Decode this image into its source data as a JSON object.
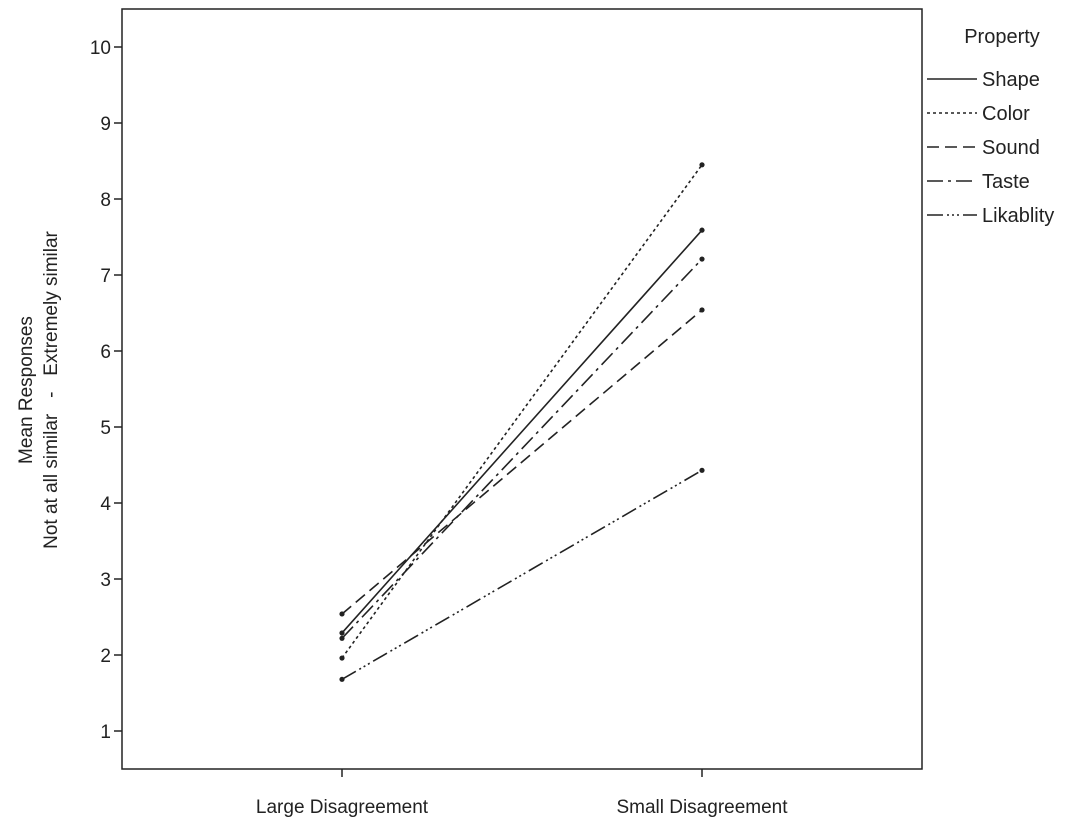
{
  "chart_data": {
    "type": "line",
    "categories": [
      "Large Disagreement",
      "Small Disagreement"
    ],
    "ylabel_line1": "Mean Responses",
    "ylabel_line2": "Not at all similar   -   Extremely similar",
    "xlabel": "",
    "ylim": [
      0.5,
      10.5
    ],
    "yticks": [
      1,
      2,
      3,
      4,
      5,
      6,
      7,
      8,
      9,
      10
    ],
    "grid": false,
    "legend": {
      "title": "Property",
      "placement": "right"
    },
    "series": [
      {
        "name": "Shape",
        "values": [
          2.29,
          7.59
        ],
        "dash": "solid"
      },
      {
        "name": "Color",
        "values": [
          1.96,
          8.45
        ],
        "dash": "dotted"
      },
      {
        "name": "Sound",
        "values": [
          2.54,
          6.54
        ],
        "dash": "dashed"
      },
      {
        "name": "Taste",
        "values": [
          2.22,
          7.21
        ],
        "dash": "dashdot"
      },
      {
        "name": "Likablity",
        "values": [
          1.68,
          4.43
        ],
        "dash": "dashdotdotdot"
      }
    ],
    "line_color": "#222222"
  }
}
